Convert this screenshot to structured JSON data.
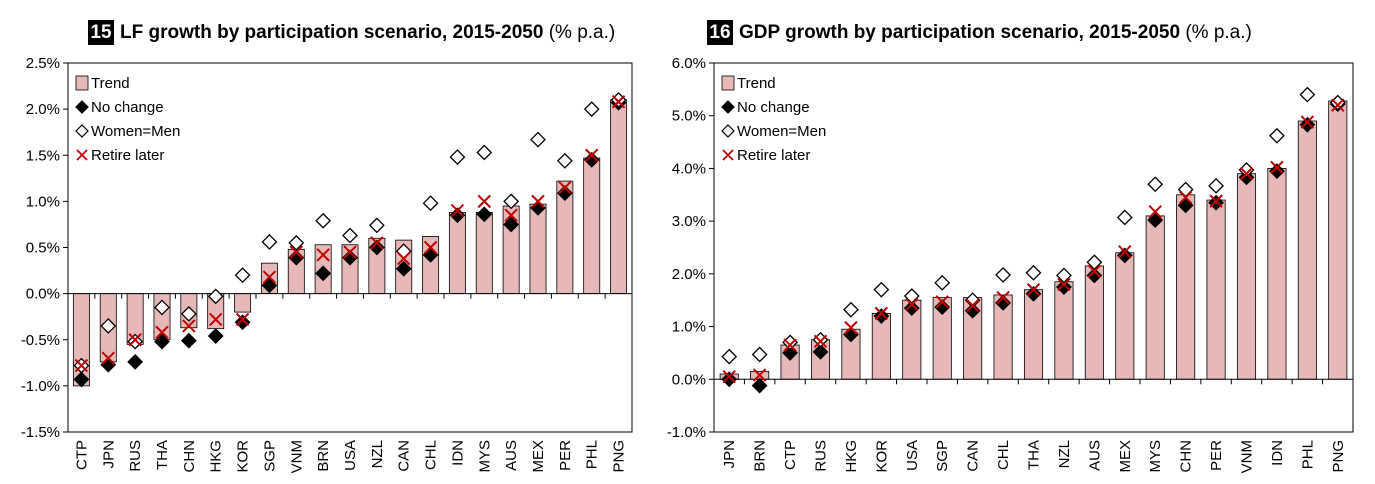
{
  "chart_data": [
    {
      "type": "bar",
      "number": "15",
      "title": "LF growth by participation scenario, 2015-2050",
      "unit": "(% p.a.)",
      "categories": [
        "CTP",
        "JPN",
        "RUS",
        "THA",
        "CHN",
        "HKG",
        "KOR",
        "SGP",
        "VNM",
        "BRN",
        "USA",
        "NZL",
        "CAN",
        "CHL",
        "IDN",
        "MYS",
        "AUS",
        "MEX",
        "PER",
        "PHL",
        "PNG"
      ],
      "ylim": [
        -1.5,
        2.5
      ],
      "yticks": [
        {
          "value": -1.5,
          "label": "-1.5%"
        },
        {
          "value": -1.0,
          "label": "-1.0%"
        },
        {
          "value": -0.5,
          "label": "-0.5%"
        },
        {
          "value": 0,
          "label": "0.0%"
        },
        {
          "value": 0.5,
          "label": "0.5%"
        },
        {
          "value": 1.0,
          "label": "1.0%"
        },
        {
          "value": 1.5,
          "label": "1.5%"
        },
        {
          "value": 2.0,
          "label": "2.0%"
        },
        {
          "value": 2.5,
          "label": "2.5%"
        }
      ],
      "legend": "upper left",
      "series": [
        {
          "name": "Trend",
          "marker": "bar",
          "color": "#e6b9b8",
          "values": [
            -1.0,
            -0.74,
            -0.55,
            -0.5,
            -0.37,
            -0.38,
            -0.2,
            0.33,
            0.48,
            0.53,
            0.53,
            0.6,
            0.58,
            0.62,
            0.88,
            0.88,
            0.95,
            0.97,
            1.22,
            1.47,
            2.1
          ]
        },
        {
          "name": "No change",
          "marker": "diamond",
          "color": "#000000",
          "values": [
            -0.93,
            -0.77,
            -0.74,
            -0.52,
            -0.51,
            -0.46,
            -0.31,
            0.09,
            0.39,
            0.22,
            0.39,
            0.5,
            0.27,
            0.42,
            0.85,
            0.86,
            0.75,
            0.93,
            1.09,
            1.45,
            2.07
          ]
        },
        {
          "name": "Women=Men",
          "marker": "diamond-open",
          "color": "#000000",
          "values": [
            -0.78,
            -0.35,
            -0.52,
            -0.15,
            -0.22,
            -0.03,
            0.2,
            0.56,
            0.55,
            0.79,
            0.63,
            0.74,
            0.46,
            0.98,
            1.48,
            1.53,
            1.0,
            1.67,
            1.44,
            2.0,
            2.1
          ]
        },
        {
          "name": "Retire later",
          "marker": "x",
          "color": "#c00000",
          "values": [
            -0.78,
            -0.7,
            -0.5,
            -0.42,
            -0.35,
            -0.28,
            -0.28,
            0.18,
            0.45,
            0.42,
            0.45,
            0.55,
            0.38,
            0.5,
            0.9,
            1.0,
            0.85,
            1.0,
            1.15,
            1.5,
            2.08
          ]
        }
      ]
    },
    {
      "type": "bar",
      "number": "16",
      "title": "GDP growth by participation scenario, 2015-2050",
      "unit": "(% p.a.)",
      "categories": [
        "JPN",
        "BRN",
        "CTP",
        "RUS",
        "HKG",
        "KOR",
        "USA",
        "SGP",
        "CAN",
        "CHL",
        "THA",
        "NZL",
        "AUS",
        "MEX",
        "MYS",
        "CHN",
        "PER",
        "VNM",
        "IDN",
        "PHL",
        "PNG"
      ],
      "ylim": [
        -1.0,
        6.0
      ],
      "yticks": [
        {
          "value": -1.0,
          "label": "-1.0%"
        },
        {
          "value": 0,
          "label": "0.0%"
        },
        {
          "value": 1.0,
          "label": "1.0%"
        },
        {
          "value": 2.0,
          "label": "2.0%"
        },
        {
          "value": 3.0,
          "label": "3.0%"
        },
        {
          "value": 4.0,
          "label": "4.0%"
        },
        {
          "value": 5.0,
          "label": "5.0%"
        },
        {
          "value": 6.0,
          "label": "6.0%"
        }
      ],
      "legend": "upper left",
      "series": [
        {
          "name": "Trend",
          "marker": "bar",
          "color": "#e6b9b8",
          "values": [
            0.1,
            0.15,
            0.65,
            0.75,
            0.95,
            1.25,
            1.5,
            1.55,
            1.55,
            1.6,
            1.7,
            1.85,
            2.15,
            2.4,
            3.1,
            3.5,
            3.4,
            3.9,
            4.0,
            4.9,
            5.28
          ]
        },
        {
          "name": "No change",
          "marker": "diamond",
          "color": "#000000",
          "values": [
            0.0,
            -0.12,
            0.5,
            0.52,
            0.85,
            1.2,
            1.35,
            1.37,
            1.3,
            1.45,
            1.62,
            1.75,
            1.97,
            2.35,
            3.02,
            3.3,
            3.35,
            3.83,
            3.95,
            4.83,
            5.22
          ]
        },
        {
          "name": "Women=Men",
          "marker": "diamond-open",
          "color": "#000000",
          "values": [
            0.43,
            0.47,
            0.7,
            0.75,
            1.32,
            1.7,
            1.58,
            1.83,
            1.5,
            1.98,
            2.02,
            1.97,
            2.22,
            3.07,
            3.7,
            3.6,
            3.67,
            3.97,
            4.62,
            5.4,
            5.25
          ]
        },
        {
          "name": "Retire later",
          "marker": "x",
          "color": "#c00000",
          "values": [
            0.05,
            0.08,
            0.65,
            0.72,
            0.98,
            1.25,
            1.42,
            1.47,
            1.4,
            1.55,
            1.7,
            1.8,
            2.05,
            2.42,
            3.18,
            3.45,
            3.38,
            3.9,
            4.02,
            4.88,
            5.2
          ]
        }
      ]
    }
  ]
}
